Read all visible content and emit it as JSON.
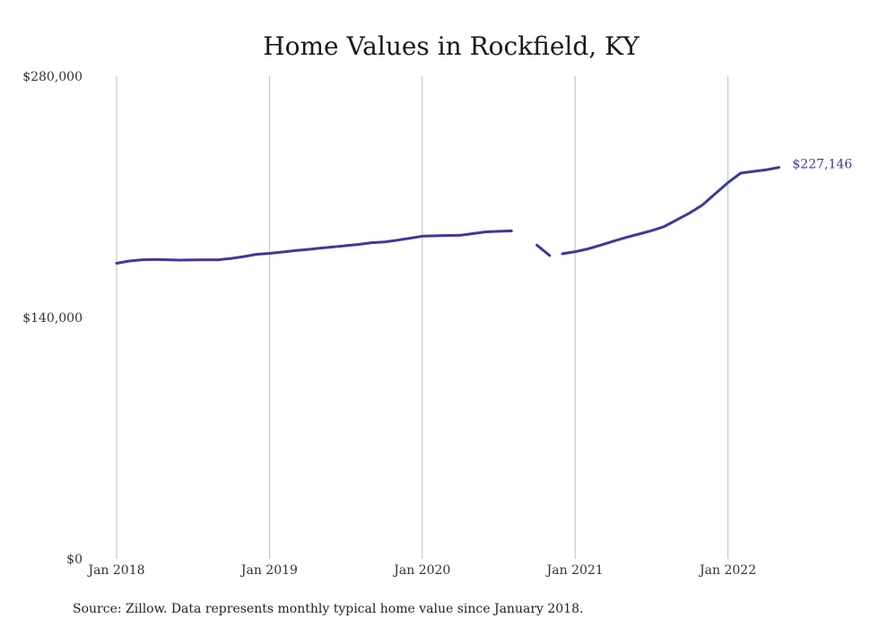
{
  "chart_data": {
    "type": "line",
    "title": "Home Values in Rockfield, KY",
    "xlabel": "",
    "ylabel": "",
    "ylim": [
      0,
      280000
    ],
    "yticks": [
      0,
      140000,
      280000
    ],
    "ytick_labels": [
      "$0",
      "$140,000",
      "$280,000"
    ],
    "x_ticks": [
      {
        "label": "Jan 2018",
        "date": "2018-01"
      },
      {
        "label": "Jan 2019",
        "date": "2019-01"
      },
      {
        "label": "Jan 2020",
        "date": "2020-01"
      },
      {
        "label": "Jan 2021",
        "date": "2021-01"
      },
      {
        "label": "Jan 2022",
        "date": "2022-01"
      }
    ],
    "grid": "vertical",
    "series": [
      {
        "color": "#3b3a9b",
        "segments": [
          [
            {
              "date": "2018-01",
              "y": 171500
            },
            {
              "date": "2018-02",
              "y": 172800
            },
            {
              "date": "2018-03",
              "y": 173500
            },
            {
              "date": "2018-04",
              "y": 173700
            },
            {
              "date": "2018-05",
              "y": 173500
            },
            {
              "date": "2018-06",
              "y": 173300
            },
            {
              "date": "2018-07",
              "y": 173400
            },
            {
              "date": "2018-08",
              "y": 173500
            },
            {
              "date": "2018-09",
              "y": 173500
            },
            {
              "date": "2018-10",
              "y": 174300
            },
            {
              "date": "2018-11",
              "y": 175400
            },
            {
              "date": "2018-12",
              "y": 176700
            },
            {
              "date": "2019-01",
              "y": 177200
            },
            {
              "date": "2019-02",
              "y": 178000
            },
            {
              "date": "2019-03",
              "y": 178800
            },
            {
              "date": "2019-04",
              "y": 179500
            },
            {
              "date": "2019-05",
              "y": 180300
            },
            {
              "date": "2019-06",
              "y": 181000
            },
            {
              "date": "2019-07",
              "y": 181700
            },
            {
              "date": "2019-08",
              "y": 182400
            },
            {
              "date": "2019-09",
              "y": 183400
            },
            {
              "date": "2019-10",
              "y": 183800
            },
            {
              "date": "2019-11",
              "y": 184800
            },
            {
              "date": "2019-12",
              "y": 186000
            },
            {
              "date": "2020-01",
              "y": 187200
            },
            {
              "date": "2020-02",
              "y": 187400
            },
            {
              "date": "2020-03",
              "y": 187600
            },
            {
              "date": "2020-04",
              "y": 187700
            },
            {
              "date": "2020-05",
              "y": 188700
            },
            {
              "date": "2020-06",
              "y": 189700
            },
            {
              "date": "2020-07",
              "y": 190000
            },
            {
              "date": "2020-08",
              "y": 190300
            }
          ],
          [
            {
              "date": "2020-10",
              "y": 182000
            },
            {
              "date": "2020-11",
              "y": 176000
            }
          ],
          [
            {
              "date": "2020-12",
              "y": 177000
            },
            {
              "date": "2021-01",
              "y": 178200
            },
            {
              "date": "2021-02",
              "y": 179800
            },
            {
              "date": "2021-03",
              "y": 182000
            },
            {
              "date": "2021-04",
              "y": 184300
            },
            {
              "date": "2021-05",
              "y": 186500
            },
            {
              "date": "2021-06",
              "y": 188400
            },
            {
              "date": "2021-07",
              "y": 190400
            },
            {
              "date": "2021-08",
              "y": 192800
            },
            {
              "date": "2021-09",
              "y": 196800
            },
            {
              "date": "2021-10",
              "y": 200700
            },
            {
              "date": "2021-11",
              "y": 205300
            },
            {
              "date": "2021-12",
              "y": 211800
            },
            {
              "date": "2022-01",
              "y": 218300
            },
            {
              "date": "2022-02",
              "y": 223800
            },
            {
              "date": "2022-03",
              "y": 224800
            },
            {
              "date": "2022-04",
              "y": 225700
            },
            {
              "date": "2022-05",
              "y": 227146
            }
          ]
        ]
      }
    ],
    "end_label": "$227,146",
    "source": "Source: Zillow. Data represents monthly typical home value since January 2018."
  }
}
